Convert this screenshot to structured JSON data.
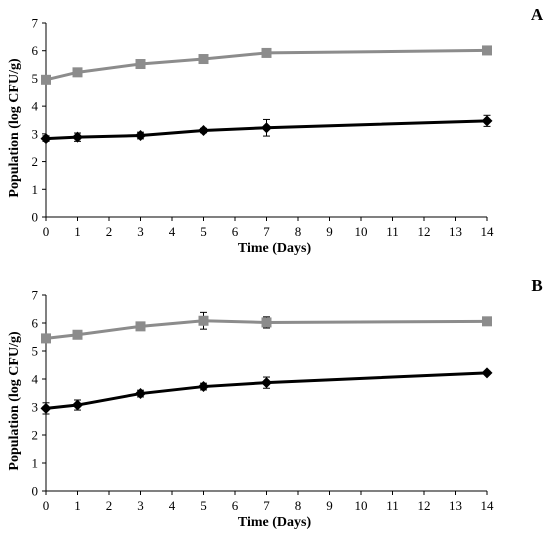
{
  "chart_data": [
    {
      "type": "line",
      "panel_label": "A",
      "xlabel": "Time (Days)",
      "ylabel": "Population (log CFU/g)",
      "xlim": [
        0,
        14
      ],
      "ylim": [
        0,
        7
      ],
      "x_ticks": [
        0,
        1,
        2,
        3,
        4,
        5,
        6,
        7,
        8,
        9,
        10,
        11,
        12,
        13,
        14
      ],
      "y_ticks": [
        0,
        1,
        2,
        3,
        4,
        5,
        6,
        7
      ],
      "grid": false,
      "legend": "none",
      "series": [
        {
          "marker": "square",
          "color": "#8c8c8c",
          "x": [
            0,
            1,
            3,
            5,
            7,
            14
          ],
          "y": [
            4.95,
            5.22,
            5.52,
            5.7,
            5.92,
            6.01
          ],
          "err": [
            0.1,
            0.15,
            0.08,
            0.08,
            0.12,
            0.06
          ]
        },
        {
          "marker": "diamond",
          "color": "#000000",
          "x": [
            0,
            1,
            3,
            5,
            7,
            14
          ],
          "y": [
            2.83,
            2.88,
            2.94,
            3.12,
            3.22,
            3.47
          ],
          "err": [
            0.1,
            0.15,
            0.12,
            0.08,
            0.3,
            0.2
          ]
        }
      ]
    },
    {
      "type": "line",
      "panel_label": "B",
      "xlabel": "Time (Days)",
      "ylabel": "Population (log CFU/g)",
      "xlim": [
        0,
        14
      ],
      "ylim": [
        0,
        7
      ],
      "x_ticks": [
        0,
        1,
        2,
        3,
        4,
        5,
        6,
        7,
        8,
        9,
        10,
        11,
        12,
        13,
        14
      ],
      "y_ticks": [
        0,
        1,
        2,
        3,
        4,
        5,
        6,
        7
      ],
      "grid": false,
      "legend": "none",
      "series": [
        {
          "marker": "square",
          "color": "#8c8c8c",
          "x": [
            0,
            1,
            3,
            5,
            7,
            14
          ],
          "y": [
            5.45,
            5.58,
            5.88,
            6.08,
            6.02,
            6.06
          ],
          "err": [
            0.1,
            0.1,
            0.1,
            0.3,
            0.2,
            0.08
          ]
        },
        {
          "marker": "diamond",
          "color": "#000000",
          "x": [
            0,
            1,
            3,
            5,
            7,
            14
          ],
          "y": [
            2.95,
            3.07,
            3.48,
            3.73,
            3.87,
            4.22
          ],
          "err": [
            0.2,
            0.18,
            0.12,
            0.12,
            0.2,
            0.06
          ]
        }
      ]
    }
  ]
}
